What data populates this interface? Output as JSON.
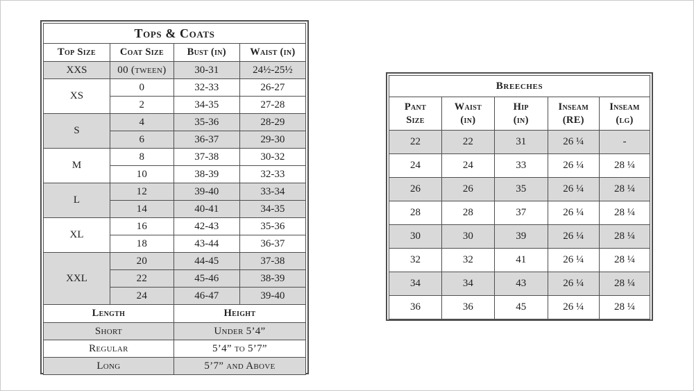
{
  "colors": {
    "shaded_row": "#d9d9d9",
    "border": "#4e4e4e",
    "text": "#202020",
    "background": "#ffffff"
  },
  "tops_coats_table": {
    "title": "Tops & Coats",
    "headers": [
      "Top Size",
      "Coat Size",
      "Bust (in)",
      "Waist (in)"
    ],
    "size_groups": [
      {
        "size": "XXS",
        "shaded": true,
        "rows": [
          {
            "coat_size": "00 (tween)",
            "bust": "30-31",
            "waist": "24½-25½"
          }
        ]
      },
      {
        "size": "XS",
        "shaded": false,
        "rows": [
          {
            "coat_size": "0",
            "bust": "32-33",
            "waist": "26-27"
          },
          {
            "coat_size": "2",
            "bust": "34-35",
            "waist": "27-28"
          }
        ]
      },
      {
        "size": "S",
        "shaded": true,
        "rows": [
          {
            "coat_size": "4",
            "bust": "35-36",
            "waist": "28-29"
          },
          {
            "coat_size": "6",
            "bust": "36-37",
            "waist": "29-30"
          }
        ]
      },
      {
        "size": "M",
        "shaded": false,
        "rows": [
          {
            "coat_size": "8",
            "bust": "37-38",
            "waist": "30-32"
          },
          {
            "coat_size": "10",
            "bust": "38-39",
            "waist": "32-33"
          }
        ]
      },
      {
        "size": "L",
        "shaded": true,
        "rows": [
          {
            "coat_size": "12",
            "bust": "39-40",
            "waist": "33-34"
          },
          {
            "coat_size": "14",
            "bust": "40-41",
            "waist": "34-35"
          }
        ]
      },
      {
        "size": "XL",
        "shaded": false,
        "rows": [
          {
            "coat_size": "16",
            "bust": "42-43",
            "waist": "35-36"
          },
          {
            "coat_size": "18",
            "bust": "43-44",
            "waist": "36-37"
          }
        ]
      },
      {
        "size": "XXL",
        "shaded": true,
        "rows": [
          {
            "coat_size": "20",
            "bust": "44-45",
            "waist": "37-38"
          },
          {
            "coat_size": "22",
            "bust": "45-46",
            "waist": "38-39"
          },
          {
            "coat_size": "24",
            "bust": "46-47",
            "waist": "39-40"
          }
        ]
      }
    ],
    "length_section": {
      "headers": [
        "Length",
        "Height"
      ],
      "rows": [
        {
          "length": "Short",
          "height": "Under 5’4”",
          "shaded": true
        },
        {
          "length": "Regular",
          "height": "5’4” to 5’7”",
          "shaded": false
        },
        {
          "length": "Long",
          "height": "5’7” and Above",
          "shaded": true
        }
      ]
    }
  },
  "breeches_table": {
    "title": "Breeches",
    "headers": [
      {
        "line1": "Pant",
        "line2": "Size"
      },
      {
        "line1": "Waist",
        "line2": "(in)"
      },
      {
        "line1": "Hip",
        "line2": "(in)"
      },
      {
        "line1": "Inseam",
        "line2": "(RE)"
      },
      {
        "line1": "Inseam",
        "line2": "(lg)"
      }
    ],
    "rows": [
      {
        "pant_size": "22",
        "waist": "22",
        "hip": "31",
        "inseam_re": "26 ¼",
        "inseam_lg": "-",
        "shaded": true
      },
      {
        "pant_size": "24",
        "waist": "24",
        "hip": "33",
        "inseam_re": "26 ¼",
        "inseam_lg": "28 ¼",
        "shaded": false
      },
      {
        "pant_size": "26",
        "waist": "26",
        "hip": "35",
        "inseam_re": "26 ¼",
        "inseam_lg": "28 ¼",
        "shaded": true
      },
      {
        "pant_size": "28",
        "waist": "28",
        "hip": "37",
        "inseam_re": "26 ¼",
        "inseam_lg": "28 ¼",
        "shaded": false
      },
      {
        "pant_size": "30",
        "waist": "30",
        "hip": "39",
        "inseam_re": "26 ¼",
        "inseam_lg": "28 ¼",
        "shaded": true
      },
      {
        "pant_size": "32",
        "waist": "32",
        "hip": "41",
        "inseam_re": "26 ¼",
        "inseam_lg": "28 ¼",
        "shaded": false
      },
      {
        "pant_size": "34",
        "waist": "34",
        "hip": "43",
        "inseam_re": "26 ¼",
        "inseam_lg": "28 ¼",
        "shaded": true
      },
      {
        "pant_size": "36",
        "waist": "36",
        "hip": "45",
        "inseam_re": "26 ¼",
        "inseam_lg": "28 ¼",
        "shaded": false
      }
    ]
  }
}
